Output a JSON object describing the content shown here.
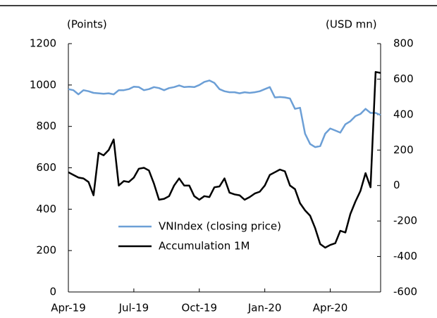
{
  "chart_data": {
    "type": "line",
    "ylabel": "(Points)",
    "y2label": "(USD mn)",
    "categories": [
      "Apr-19",
      null,
      null,
      null,
      null,
      null,
      null,
      null,
      null,
      null,
      null,
      null,
      null,
      "Jul-19",
      null,
      null,
      null,
      null,
      null,
      null,
      null,
      null,
      null,
      null,
      null,
      null,
      "Oct-19",
      null,
      null,
      null,
      null,
      null,
      null,
      null,
      null,
      null,
      null,
      null,
      null,
      "Jan-20",
      null,
      null,
      null,
      null,
      null,
      null,
      null,
      null,
      null,
      null,
      null,
      null,
      "Apr-20",
      null,
      null,
      null,
      null,
      null,
      null,
      null,
      null,
      null,
      null
    ],
    "series": [
      {
        "name": "VNIndex (closing price)",
        "color": "#6c9fd6",
        "values": [
          980,
          975,
          955,
          975,
          970,
          962,
          960,
          958,
          960,
          955,
          975,
          975,
          980,
          992,
          990,
          975,
          980,
          990,
          985,
          975,
          985,
          990,
          998,
          990,
          992,
          990,
          1000,
          1015,
          1022,
          1010,
          980,
          970,
          965,
          965,
          960,
          965,
          962,
          965,
          970,
          980,
          990,
          940,
          942,
          940,
          935,
          885,
          890,
          765,
          715,
          700,
          705,
          765,
          790,
          780,
          770,
          810,
          825,
          850,
          860,
          885,
          865,
          865,
          855
        ]
      },
      {
        "name": "Accumulation 1M",
        "color": "#000000",
        "axis": "y2",
        "values": [
          75,
          60,
          45,
          40,
          20,
          -55,
          185,
          170,
          200,
          260,
          0,
          25,
          20,
          45,
          95,
          100,
          85,
          10,
          -80,
          -75,
          -60,
          0,
          40,
          0,
          0,
          -60,
          -80,
          -60,
          -65,
          -10,
          -5,
          40,
          -40,
          -50,
          -55,
          -80,
          -65,
          -45,
          -35,
          0,
          60,
          75,
          90,
          80,
          0,
          -20,
          -100,
          -140,
          -170,
          -240,
          -330,
          -350,
          -335,
          -325,
          -255,
          -265,
          -160,
          -90,
          -30,
          70,
          -10,
          640,
          635
        ]
      }
    ],
    "ylim": [
      0,
      1200
    ],
    "yticks": [
      0,
      200,
      400,
      600,
      800,
      1000,
      1200
    ],
    "y2lim": [
      -600,
      800
    ],
    "y2ticks": [
      -600,
      -400,
      -200,
      0,
      200,
      400,
      600,
      800
    ],
    "grid": false
  }
}
